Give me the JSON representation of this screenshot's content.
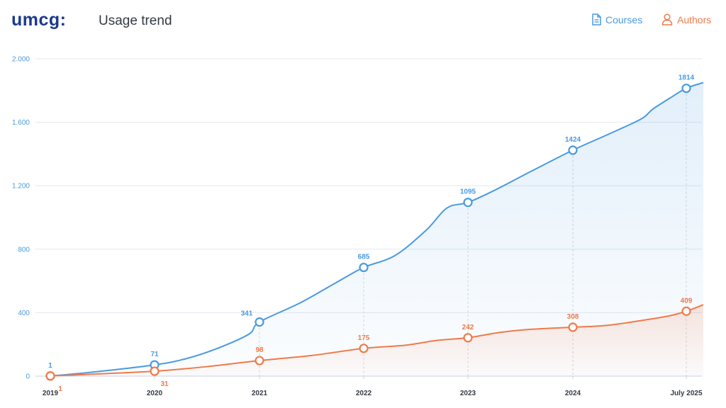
{
  "header": {
    "logo_text": "umcg:",
    "title": "Usage trend"
  },
  "legend": {
    "courses_label": "Courses",
    "authors_label": "Authors",
    "courses_icon": "document-icon",
    "authors_icon": "person-icon"
  },
  "colors": {
    "courses": "#4a9ae0",
    "authors": "#f07a4a",
    "grid": "#e3e8ef"
  },
  "chart_data": {
    "type": "area",
    "x_labels": [
      "2019",
      "2020",
      "2021",
      "2022",
      "2023",
      "2024",
      "July 2025"
    ],
    "ylim": [
      0,
      2000
    ],
    "y_ticks": [
      0,
      400,
      800,
      1200,
      1600,
      2000
    ],
    "y_tick_labels": [
      "0",
      "400",
      "800",
      "1.200",
      "1.600",
      "2.000"
    ],
    "grid": true,
    "legend_position": "top-right",
    "series": [
      {
        "name": "Courses",
        "color": "#4a9ae0",
        "marker_values": [
          1,
          71,
          341,
          685,
          1095,
          1424,
          1814
        ],
        "marker_labels": [
          "1",
          "71",
          "341",
          "685",
          "1095",
          "1424",
          "1814"
        ],
        "curve_x": [
          0,
          0.4,
          1,
          1.3,
          1.6,
          1.9,
          2,
          2.4,
          2.75,
          3,
          3.3,
          3.6,
          3.8,
          4,
          4.25,
          4.6,
          5,
          5.3,
          5.6,
          5.7,
          5.85,
          6,
          6.15
        ],
        "curve_y": [
          1,
          25,
          71,
          110,
          175,
          265,
          341,
          465,
          595,
          685,
          760,
          920,
          1060,
          1095,
          1170,
          1290,
          1424,
          1520,
          1620,
          1680,
          1750,
          1814,
          1850
        ]
      },
      {
        "name": "Authors",
        "color": "#f07a4a",
        "marker_values": [
          1,
          31,
          98,
          175,
          242,
          308,
          409
        ],
        "marker_labels": [
          "1",
          "31",
          "98",
          "175",
          "242",
          "308",
          "409"
        ],
        "curve_x": [
          0,
          0.5,
          1,
          1.5,
          2,
          2.5,
          3,
          3.4,
          3.7,
          4,
          4.3,
          4.6,
          5,
          5.3,
          5.6,
          5.85,
          6,
          6.15
        ],
        "curve_y": [
          1,
          15,
          31,
          60,
          98,
          130,
          175,
          195,
          225,
          242,
          275,
          295,
          308,
          320,
          350,
          380,
          409,
          450
        ]
      }
    ]
  }
}
